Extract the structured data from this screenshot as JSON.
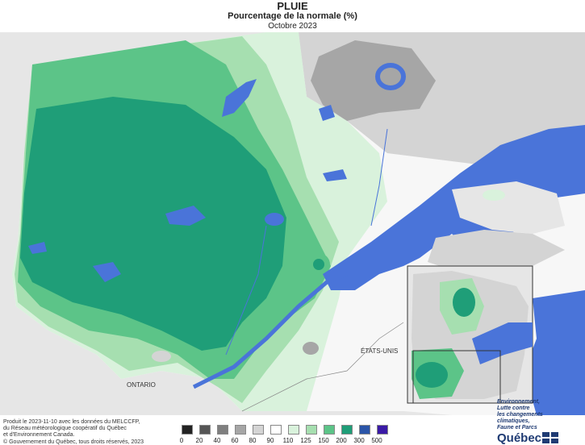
{
  "title": "PLUIE",
  "subtitle": "Pourcentage de la normale (%)",
  "period": "Octobre 2023",
  "map_labels": {
    "ontario": "ONTARIO",
    "usa": "ÉTATS-UNIS"
  },
  "credits": {
    "line1": "Produit le 2023-11-10 avec les données du MELCCFP,",
    "line2": "du Réseau météorologique coopératif du Québec",
    "line3": "et d'Environnement Canada.",
    "copyright": "© Gouvernement du Québec, tous droits réservés, 2023"
  },
  "legend": {
    "labels": [
      "0",
      "20",
      "40",
      "60",
      "80",
      "90",
      "110",
      "125",
      "150",
      "200",
      "300",
      "500"
    ],
    "colors": [
      "#222222",
      "#555555",
      "#7f7f7f",
      "#a6a6a6",
      "#d4d4d4",
      "#ffffff",
      "#d9f2dc",
      "#a6dfb0",
      "#5cc488",
      "#1f9e78",
      "#2b55a8",
      "#3a1aa6"
    ]
  },
  "brand": {
    "line1": "Environnement,",
    "line2": "Lutte contre",
    "line3": "les changements",
    "line4": "climatiques,",
    "line5": "Faune et Parcs",
    "name": "Québec"
  },
  "colors": {
    "water": "#4a74d9",
    "outside": "#e6e6e6",
    "light_green": "#d9f2dc",
    "mid_green": "#a6dfb0",
    "green": "#5cc488",
    "dark_green": "#1f9e78",
    "gray": "#a6a6a6",
    "dark_gray": "#7f7f7f"
  }
}
